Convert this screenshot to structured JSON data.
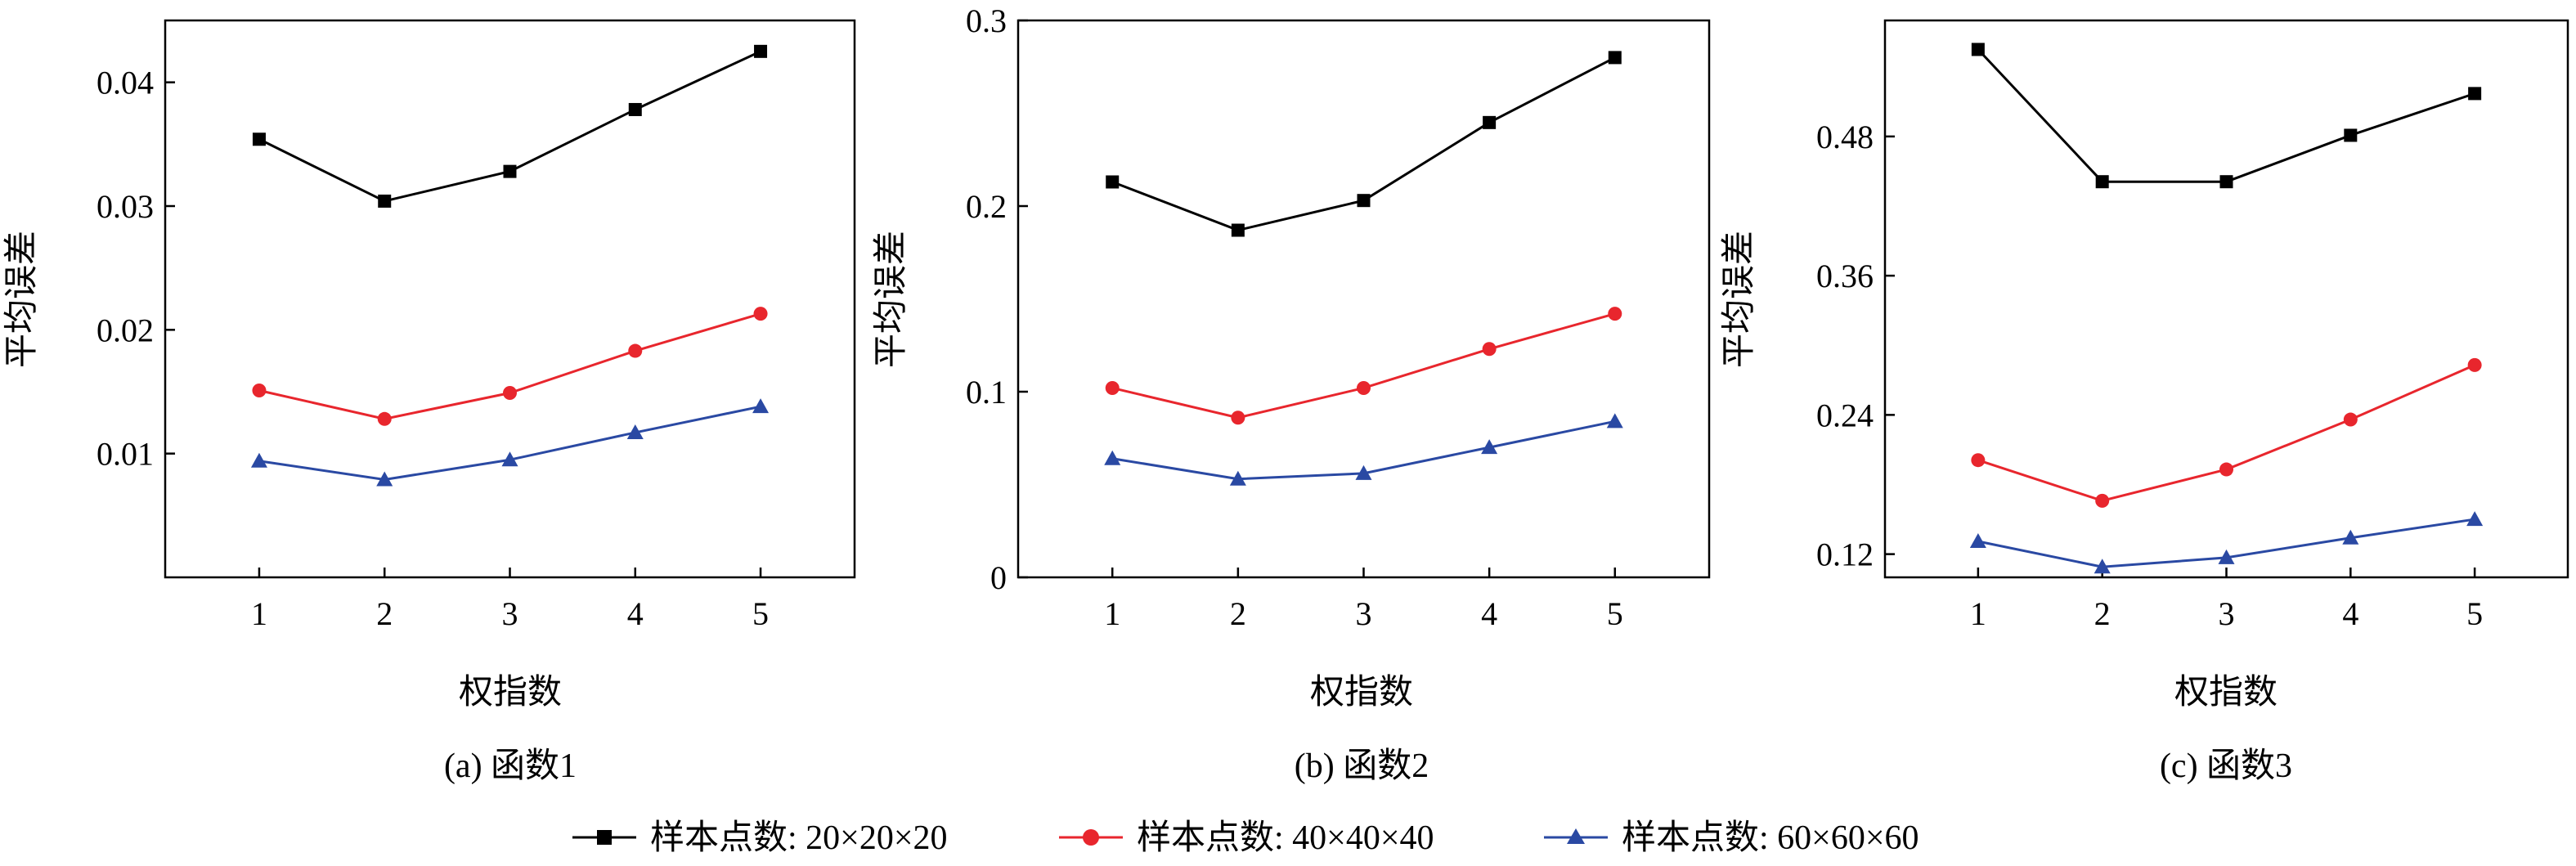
{
  "chart_data": [
    {
      "type": "line",
      "caption": "(a) 函数1",
      "xlabel": "权指数",
      "ylabel": "平均误差",
      "x": [
        1,
        2,
        3,
        4,
        5
      ],
      "ylim": [
        0.0,
        0.045
      ],
      "yticks": [
        0.01,
        0.02,
        0.03,
        0.04
      ],
      "ytick_labels": [
        "0.01",
        "0.02",
        "0.03",
        "0.04"
      ],
      "series": [
        {
          "name": "样本点数: 20×20×20",
          "values": [
            0.0354,
            0.0304,
            0.0328,
            0.0378,
            0.0425
          ]
        },
        {
          "name": "样本点数: 40×40×40",
          "values": [
            0.0151,
            0.0128,
            0.0149,
            0.0183,
            0.0213
          ]
        },
        {
          "name": "样本点数: 60×60×60",
          "values": [
            0.0094,
            0.0079,
            0.0095,
            0.0117,
            0.0138
          ]
        }
      ]
    },
    {
      "type": "line",
      "caption": "(b) 函数2",
      "xlabel": "权指数",
      "ylabel": "平均误差",
      "x": [
        1,
        2,
        3,
        4,
        5
      ],
      "ylim": [
        0.0,
        0.3
      ],
      "yticks": [
        0,
        0.1,
        0.2,
        0.3
      ],
      "ytick_labels": [
        "0",
        "0.1",
        "0.2",
        "0.3"
      ],
      "series": [
        {
          "name": "样本点数: 20×20×20",
          "values": [
            0.213,
            0.187,
            0.203,
            0.245,
            0.28
          ]
        },
        {
          "name": "样本点数: 40×40×40",
          "values": [
            0.102,
            0.086,
            0.102,
            0.123,
            0.142
          ]
        },
        {
          "name": "样本点数: 60×60×60",
          "values": [
            0.064,
            0.053,
            0.056,
            0.07,
            0.084
          ]
        }
      ]
    },
    {
      "type": "line",
      "caption": "(c) 函数3",
      "xlabel": "权指数",
      "ylabel": "平均误差",
      "x": [
        1,
        2,
        3,
        4,
        5
      ],
      "ylim": [
        0.1,
        0.58
      ],
      "yticks": [
        0.12,
        0.24,
        0.36,
        0.48
      ],
      "ytick_labels": [
        "0.12",
        "0.24",
        "0.36",
        "0.48"
      ],
      "series": [
        {
          "name": "样本点数: 20×20×20",
          "values": [
            0.555,
            0.441,
            0.441,
            0.481,
            0.517
          ]
        },
        {
          "name": "样本点数: 40×40×40",
          "values": [
            0.201,
            0.166,
            0.193,
            0.236,
            0.283
          ]
        },
        {
          "name": "样本点数: 60×60×60",
          "values": [
            0.131,
            0.109,
            0.117,
            0.134,
            0.15
          ]
        }
      ]
    }
  ],
  "legend": {
    "items": [
      {
        "label": "样本点数: 20×20×20",
        "marker": "square",
        "color": "#000000"
      },
      {
        "label": "样本点数: 40×40×40",
        "marker": "circle",
        "color": "#e8262d"
      },
      {
        "label": "样本点数: 60×60×60",
        "marker": "triangle",
        "color": "#2a49a3"
      }
    ]
  },
  "colors": [
    "#000000",
    "#e8262d",
    "#2a49a3"
  ]
}
